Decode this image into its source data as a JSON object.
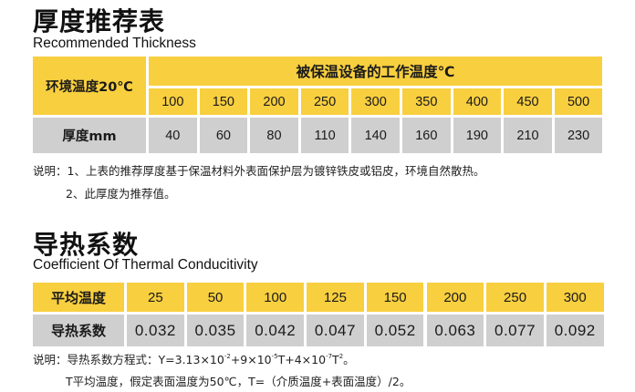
{
  "thickness": {
    "title_cn": "厚度推荐表",
    "title_en": "Recommended Thickness",
    "row_header_1": "环境温度20℃",
    "span_header": "被保温设备的工作温度℃",
    "temperatures": [
      "100",
      "150",
      "200",
      "250",
      "300",
      "350",
      "400",
      "450",
      "500"
    ],
    "row_header_2": "厚度mm",
    "thickness_mm": [
      "40",
      "60",
      "80",
      "110",
      "140",
      "160",
      "190",
      "210",
      "230"
    ],
    "note_1": "说明：1、上表的推荐厚度基于保温材料外表面保护层为镀锌铁皮或铝皮，环境自然散热。",
    "note_2": "2、此厚度为推荐值。"
  },
  "conductivity": {
    "title_cn": "导热系数",
    "title_en": "Coefficient Of Thermal Conducitivity",
    "row_header_1": "平均温度",
    "temperatures": [
      "25",
      "50",
      "100",
      "125",
      "150",
      "200",
      "250",
      "300"
    ],
    "row_header_2": "导热系数",
    "values": [
      "0.032",
      "0.035",
      "0.042",
      "0.047",
      "0.052",
      "0.063",
      "0.077",
      "0.092"
    ],
    "formula_prefix": "说明：导热系数方程式：Y=3.13×10",
    "exp_1": "-2",
    "formula_mid1": "+9×10",
    "exp_2": "-5",
    "formula_mid2": "T+4×10",
    "exp_3": "-7",
    "formula_mid3": "T",
    "exp_4": "2",
    "formula_end": "。",
    "note_2": "T平均温度，假定表面温度为50℃，T=（介质温度+表面温度）/2。"
  }
}
